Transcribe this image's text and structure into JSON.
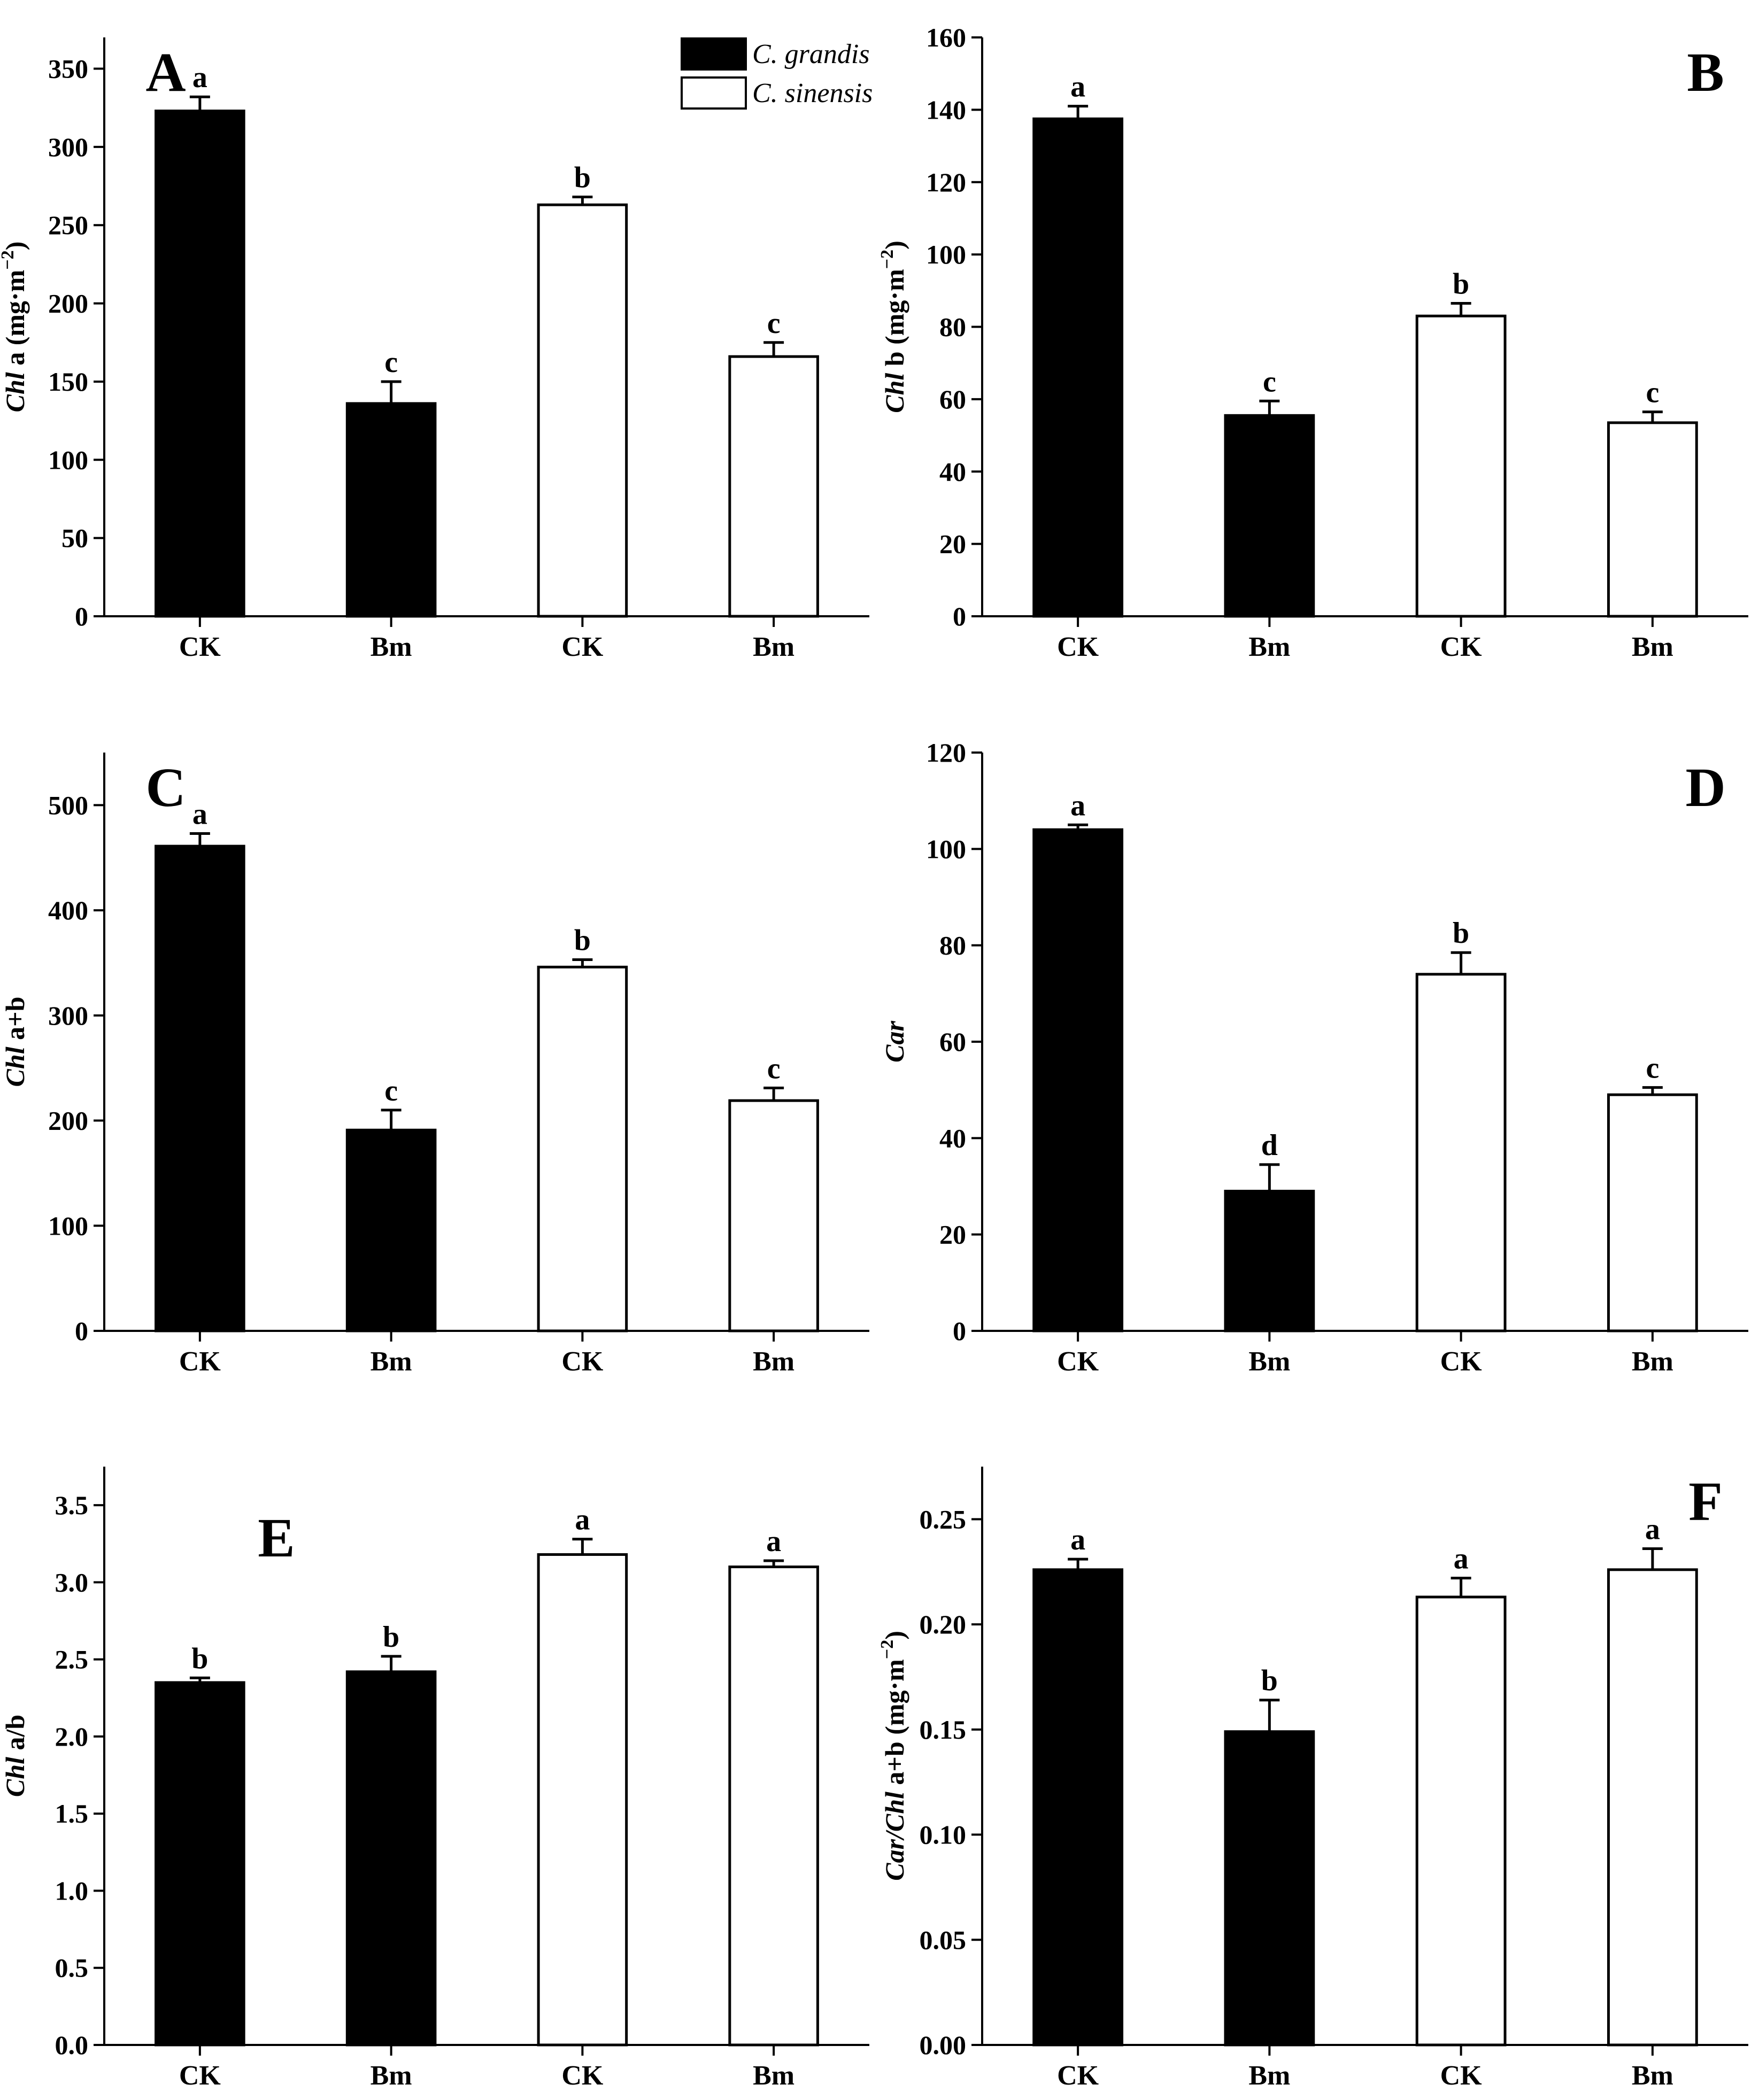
{
  "legend": {
    "items": [
      {
        "label": "C. grandis",
        "fill": "#000000"
      },
      {
        "label": "C. sinensis",
        "fill": "#ffffff"
      }
    ]
  },
  "chart_data": [
    {
      "panel": "A",
      "type": "bar",
      "categories": [
        "CK",
        "Bm",
        "CK",
        "Bm"
      ],
      "values": [
        323,
        136,
        263,
        166
      ],
      "errors": [
        9,
        14,
        5,
        9
      ],
      "significance": [
        "a",
        "c",
        "b",
        "c"
      ],
      "bar_colors": [
        "#000000",
        "#000000",
        "#ffffff",
        "#ffffff"
      ],
      "ylabel": {
        "italic": "Chl",
        "normal": " a (mg·m",
        "sup": "−2",
        "tail": ")"
      },
      "ylim": [
        0,
        370
      ],
      "yticks": [
        0,
        50,
        100,
        150,
        200,
        250,
        300,
        350
      ],
      "tick_decimals": 0,
      "letter_position": "top-left"
    },
    {
      "panel": "B",
      "type": "bar",
      "categories": [
        "CK",
        "Bm",
        "CK",
        "Bm"
      ],
      "values": [
        137.5,
        55.5,
        83,
        53.5
      ],
      "errors": [
        3.5,
        4,
        3.5,
        3
      ],
      "significance": [
        "a",
        "c",
        "b",
        "c"
      ],
      "bar_colors": [
        "#000000",
        "#000000",
        "#ffffff",
        "#ffffff"
      ],
      "ylabel": {
        "italic": "Chl",
        "normal": " b (mg·m",
        "sup": "−2",
        "tail": ")"
      },
      "ylim": [
        0,
        160
      ],
      "yticks": [
        0,
        20,
        40,
        60,
        80,
        100,
        120,
        140,
        160
      ],
      "tick_decimals": 0,
      "letter_position": "top-right"
    },
    {
      "panel": "C",
      "type": "bar",
      "categories": [
        "CK",
        "Bm",
        "CK",
        "Bm"
      ],
      "values": [
        461,
        191,
        346,
        219
      ],
      "errors": [
        12,
        19,
        7,
        12
      ],
      "significance": [
        "a",
        "c",
        "b",
        "c"
      ],
      "bar_colors": [
        "#000000",
        "#000000",
        "#ffffff",
        "#ffffff"
      ],
      "ylabel": {
        "italic": "Chl",
        "normal": " a+b",
        "sup": "",
        "tail": ""
      },
      "ylim": [
        0,
        550
      ],
      "yticks": [
        0,
        100,
        200,
        300,
        400,
        500
      ],
      "tick_decimals": 0,
      "letter_position": "top-left"
    },
    {
      "panel": "D",
      "type": "bar",
      "categories": [
        "CK",
        "Bm",
        "CK",
        "Bm"
      ],
      "values": [
        104,
        29,
        74,
        49
      ],
      "errors": [
        1,
        5.5,
        4.5,
        1.5
      ],
      "significance": [
        "a",
        "d",
        "b",
        "c"
      ],
      "bar_colors": [
        "#000000",
        "#000000",
        "#ffffff",
        "#ffffff"
      ],
      "ylabel": {
        "italic": "Car",
        "normal": "",
        "sup": "",
        "tail": ""
      },
      "ylim": [
        0,
        120
      ],
      "yticks": [
        0,
        20,
        40,
        60,
        80,
        100,
        120
      ],
      "tick_decimals": 0,
      "letter_position": "top-right"
    },
    {
      "panel": "E",
      "type": "bar",
      "categories": [
        "CK",
        "Bm",
        "CK",
        "Bm"
      ],
      "values": [
        2.35,
        2.42,
        3.18,
        3.1
      ],
      "errors": [
        0.03,
        0.1,
        0.1,
        0.04
      ],
      "significance": [
        "b",
        "b",
        "a",
        "a"
      ],
      "bar_colors": [
        "#000000",
        "#000000",
        "#ffffff",
        "#ffffff"
      ],
      "ylabel": {
        "italic": "Chl",
        "normal": " a/b",
        "sup": "",
        "tail": ""
      },
      "ylim": [
        0,
        3.75
      ],
      "yticks": [
        0.0,
        0.5,
        1.0,
        1.5,
        2.0,
        2.5,
        3.0,
        3.5
      ],
      "tick_decimals": 1,
      "letter_position": "top-center"
    },
    {
      "panel": "F",
      "type": "bar",
      "categories": [
        "CK",
        "Bm",
        "CK",
        "Bm"
      ],
      "values": [
        0.226,
        0.149,
        0.213,
        0.226
      ],
      "errors": [
        0.005,
        0.015,
        0.009,
        0.01
      ],
      "significance": [
        "a",
        "b",
        "a",
        "a"
      ],
      "bar_colors": [
        "#000000",
        "#000000",
        "#ffffff",
        "#ffffff"
      ],
      "ylabel": {
        "italic": "Car/Chl",
        "normal": " a+b (mg·m",
        "sup": "−2",
        "tail": ")"
      },
      "ylim": [
        0,
        0.275
      ],
      "yticks": [
        0.0,
        0.05,
        0.1,
        0.15,
        0.2,
        0.25
      ],
      "tick_decimals": 2,
      "letter_position": "top-right"
    }
  ]
}
